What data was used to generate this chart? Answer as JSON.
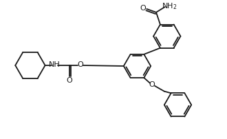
{
  "background_color": "#ffffff",
  "line_color": "#1a1a1a",
  "line_width": 1.3,
  "font_size": 8.0,
  "figsize": [
    3.3,
    2.02
  ],
  "dpi": 100,
  "xlim": [
    0,
    330
  ],
  "ylim": [
    0,
    202
  ]
}
